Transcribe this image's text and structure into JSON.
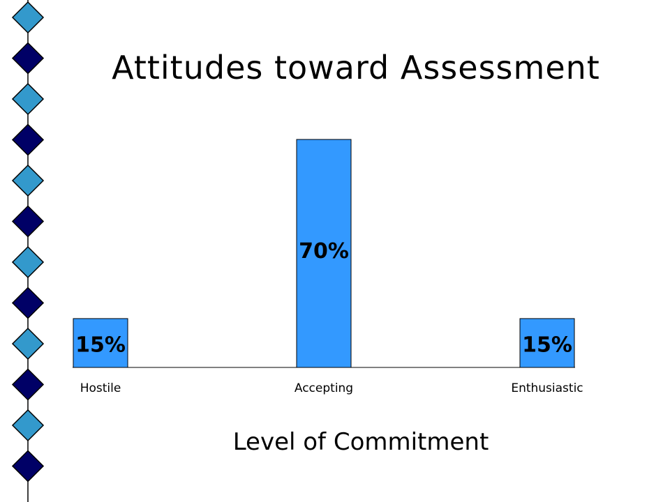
{
  "slide": {
    "title": "Attitudes toward Assessment"
  },
  "colors": {
    "bar_fill": "#3399ff",
    "bar_stroke": "#000000",
    "diamond_light": "#3399cc",
    "diamond_dark": "#000066",
    "border_line": "#000000"
  },
  "decor": {
    "diamond_colors": [
      "light",
      "dark",
      "light",
      "dark",
      "light",
      "dark",
      "light",
      "dark",
      "light",
      "dark",
      "light",
      "dark"
    ]
  },
  "chart_data": {
    "type": "bar",
    "title": "Attitudes toward Assessment",
    "categories": [
      "Hostile",
      "Accepting",
      "Enthusiastic"
    ],
    "values": [
      15,
      70,
      15
    ],
    "value_labels": [
      "15%",
      "70%",
      "15%"
    ],
    "unit": "%",
    "xlabel": "Level of Commitment",
    "ylabel": "",
    "ylim": [
      0,
      70
    ],
    "grid": false,
    "legend": "none"
  }
}
